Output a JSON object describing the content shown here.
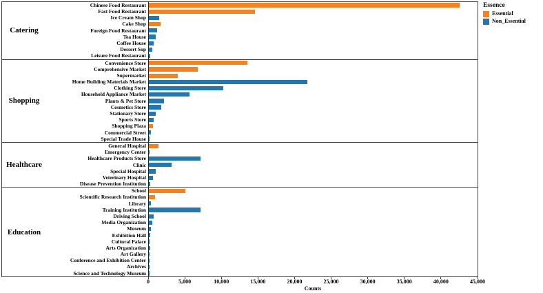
{
  "legend": {
    "title": "Essence",
    "items": [
      {
        "label": "Essential",
        "color": "#f5821f"
      },
      {
        "label": "Non_Essential",
        "color": "#1f77b4"
      }
    ]
  },
  "axis": {
    "xlabel": "Counts",
    "ticks": [
      "0",
      "5,000",
      "10,000",
      "15,000",
      "20,000",
      "25,000",
      "30,000",
      "35,000",
      "40,000",
      "45,000"
    ],
    "xlim": [
      0,
      45000
    ]
  },
  "chart_data": {
    "type": "bar",
    "orientation": "horizontal",
    "title": "",
    "xlabel": "Counts",
    "xlim": [
      0,
      45000
    ],
    "legend_title": "Essence",
    "series_colors": {
      "Essential": "#f5821f",
      "Non_Essential": "#1f77b4"
    },
    "groups": [
      {
        "name": "Catering",
        "items": [
          {
            "label": "Chinese Food Restaurant",
            "essence": "Essential",
            "value": 42500
          },
          {
            "label": "Fast Food Restaurant",
            "essence": "Essential",
            "value": 14500
          },
          {
            "label": "Ice Cream Shop",
            "essence": "Non_Essential",
            "value": 1400
          },
          {
            "label": "Cake Shop",
            "essence": "Essential",
            "value": 1600
          },
          {
            "label": "Foreign Food Restaurant",
            "essence": "Non_Essential",
            "value": 1100
          },
          {
            "label": "Tea House",
            "essence": "Non_Essential",
            "value": 900
          },
          {
            "label": "Coffee House",
            "essence": "Non_Essential",
            "value": 700
          },
          {
            "label": "Dessert Sop",
            "essence": "Non_Essential",
            "value": 500
          },
          {
            "label": "Leisure Food Restaurant",
            "essence": "Non_Essential",
            "value": 200
          }
        ]
      },
      {
        "name": "Shopping",
        "items": [
          {
            "label": "Convenience Store",
            "essence": "Essential",
            "value": 13500
          },
          {
            "label": "Comprehensive Market",
            "essence": "Essential",
            "value": 6700
          },
          {
            "label": "Supermarket",
            "essence": "Essential",
            "value": 4000
          },
          {
            "label": "Home Building Materials Market",
            "essence": "Non_Essential",
            "value": 21700
          },
          {
            "label": "Clothing Store",
            "essence": "Non_Essential",
            "value": 10200
          },
          {
            "label": "Household Appliance Market",
            "essence": "Non_Essential",
            "value": 5600
          },
          {
            "label": "Plants & Pet Store",
            "essence": "Non_Essential",
            "value": 2100
          },
          {
            "label": "Cosmetics Store",
            "essence": "Non_Essential",
            "value": 1700
          },
          {
            "label": "Stationary Store",
            "essence": "Non_Essential",
            "value": 900
          },
          {
            "label": "Sports Store",
            "essence": "Non_Essential",
            "value": 700
          },
          {
            "label": "Shopping Plaza",
            "essence": "Essential",
            "value": 600
          },
          {
            "label": "Commercial Street",
            "essence": "Non_Essential",
            "value": 250
          },
          {
            "label": "Special Trade House",
            "essence": "Non_Essential",
            "value": 120
          }
        ]
      },
      {
        "name": "Healthcare",
        "items": [
          {
            "label": "General Hospital",
            "essence": "Essential",
            "value": 1300
          },
          {
            "label": "Emergency Center",
            "essence": "Non_Essential",
            "value": 120
          },
          {
            "label": "Healthcare Products Store",
            "essence": "Non_Essential",
            "value": 7100
          },
          {
            "label": "Clinic",
            "essence": "Non_Essential",
            "value": 3100
          },
          {
            "label": "Special Hospital",
            "essence": "Non_Essential",
            "value": 900
          },
          {
            "label": "Veterinary Hospital",
            "essence": "Non_Essential",
            "value": 550
          },
          {
            "label": "Disease Prevention Institution",
            "essence": "Non_Essential",
            "value": 200
          }
        ]
      },
      {
        "name": "Education",
        "items": [
          {
            "label": "School",
            "essence": "Essential",
            "value": 5000
          },
          {
            "label": "Scientific Research Institution",
            "essence": "Essential",
            "value": 850
          },
          {
            "label": "Library",
            "essence": "Non_Essential",
            "value": 300
          },
          {
            "label": "Training Institution",
            "essence": "Non_Essential",
            "value": 7100
          },
          {
            "label": "Driving School",
            "essence": "Non_Essential",
            "value": 700
          },
          {
            "label": "Media Organization",
            "essence": "Non_Essential",
            "value": 450
          },
          {
            "label": "Museum",
            "essence": "Non_Essential",
            "value": 250
          },
          {
            "label": "Exhibition Hall",
            "essence": "Non_Essential",
            "value": 180
          },
          {
            "label": "Cultural Palace",
            "essence": "Non_Essential",
            "value": 130
          },
          {
            "label": "Arts Organization",
            "essence": "Non_Essential",
            "value": 150
          },
          {
            "label": "Art Gallery",
            "essence": "Non_Essential",
            "value": 120
          },
          {
            "label": "Conference and Exhibition Center",
            "essence": "Non_Essential",
            "value": 110
          },
          {
            "label": "Archives",
            "essence": "Non_Essential",
            "value": 90
          },
          {
            "label": "Science and Technology Museum",
            "essence": "Non_Essential",
            "value": 60
          }
        ]
      }
    ]
  }
}
